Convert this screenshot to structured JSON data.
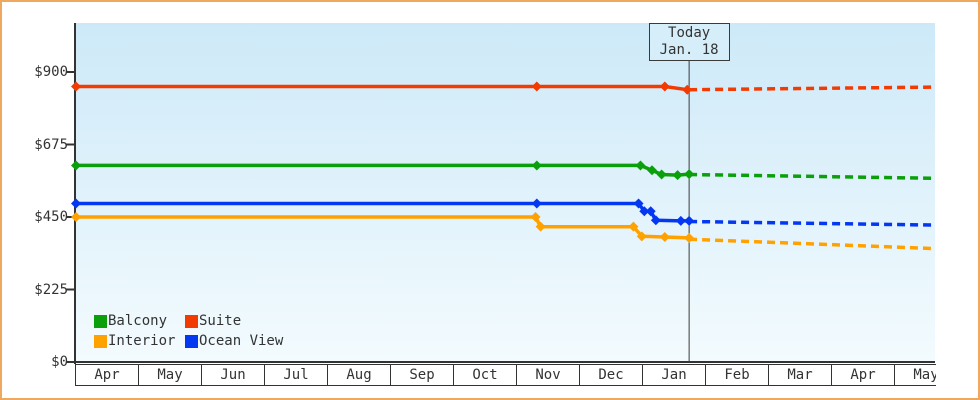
{
  "window": {
    "background": "#ffffff",
    "border_color": "#f0a85f",
    "text_color": "#333333"
  },
  "chart_data": {
    "type": "line",
    "description": "Cruise cabin price history with dashed forecast after today marker",
    "x_axis": {
      "months": [
        "Apr",
        "May",
        "Jun",
        "Jul",
        "Aug",
        "Sep",
        "Oct",
        "Nov",
        "Dec",
        "Jan",
        "Feb",
        "Mar",
        "Apr",
        "May"
      ],
      "span_months": 13.42
    },
    "y_axis": {
      "tick_labels": [
        "$900",
        "$675",
        "$450",
        "$225",
        "$0"
      ],
      "tick_values": [
        900,
        675,
        450,
        225,
        0
      ],
      "range": [
        0,
        1052
      ],
      "unit": "$"
    },
    "today": {
      "line1": "Today",
      "line2": "Jan. 18",
      "t": 9.58
    },
    "series": [
      {
        "name": "Suite",
        "color": "#f23b02",
        "actual": [
          [
            0,
            855
          ],
          [
            7.2,
            855
          ],
          [
            9.2,
            855
          ],
          [
            9.55,
            845
          ]
        ],
        "forecast": [
          [
            9.58,
            845
          ],
          [
            13.42,
            853
          ]
        ]
      },
      {
        "name": "Balcony",
        "color": "#0ba00b",
        "actual": [
          [
            0,
            610
          ],
          [
            7.2,
            610
          ],
          [
            8.82,
            610
          ],
          [
            9.0,
            595
          ],
          [
            9.15,
            582
          ],
          [
            9.4,
            580
          ],
          [
            9.58,
            583
          ]
        ],
        "forecast": [
          [
            9.58,
            582
          ],
          [
            13.42,
            570
          ]
        ]
      },
      {
        "name": "Ocean View",
        "color": "#0437f1",
        "actual": [
          [
            0,
            492
          ],
          [
            7.2,
            492
          ],
          [
            8.79,
            492
          ],
          [
            8.88,
            468
          ],
          [
            8.98,
            468
          ],
          [
            9.06,
            440
          ],
          [
            9.45,
            438
          ],
          [
            9.58,
            438
          ]
        ],
        "forecast": [
          [
            9.58,
            436
          ],
          [
            13.42,
            425
          ]
        ]
      },
      {
        "name": "Interior",
        "color": "#ffa200",
        "actual": [
          [
            0,
            450
          ],
          [
            7.18,
            450
          ],
          [
            7.26,
            420
          ],
          [
            8.71,
            420
          ],
          [
            8.84,
            390
          ],
          [
            9.2,
            388
          ],
          [
            9.58,
            385
          ]
        ],
        "forecast": [
          [
            9.58,
            381
          ],
          [
            13.42,
            352
          ]
        ]
      }
    ],
    "legend": {
      "position": "bottom-left",
      "order": [
        "Balcony",
        "Suite",
        "Interior",
        "Ocean View"
      ]
    },
    "grid": false
  }
}
